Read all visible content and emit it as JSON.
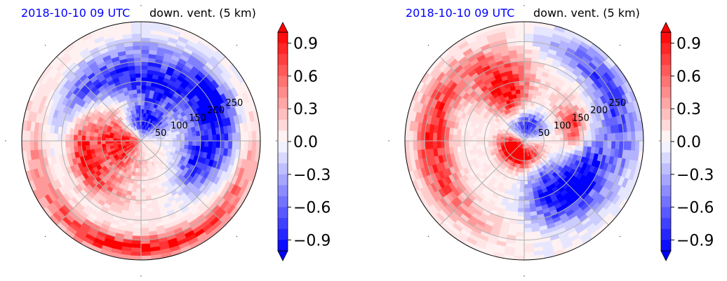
{
  "chart_data": [
    {
      "type": "heatmap",
      "projection": "polar",
      "date_label": "2018-10-10 09 UTC",
      "date_color": "#0000ff",
      "title": "down. vent. (5 km)",
      "radial_tick_labels": [
        "50",
        "100",
        "150",
        "200",
        "250"
      ],
      "radial_ticks": [
        50,
        100,
        150,
        200,
        250
      ],
      "r_max": 300,
      "grid": true,
      "colorbar": {
        "cmap": "bwr",
        "vmin": -1.0,
        "vmax": 1.0,
        "levels": 21,
        "extend": "both",
        "tick_values": [
          0.9,
          0.6,
          0.3,
          0.0,
          -0.3,
          -0.6,
          -0.9
        ],
        "tick_labels": [
          "0.9",
          "0.6",
          "0.3",
          "0.0",
          "−0.3",
          "−0.6",
          "−0.9"
        ],
        "placement": "right"
      },
      "field_features": [
        {
          "azimuth_deg": 180,
          "radius": 55,
          "value": 1.0,
          "spread_r": 45,
          "spread_theta": 50
        },
        {
          "azimuth_deg": 195,
          "radius": 150,
          "value": 0.85,
          "spread_r": 25,
          "spread_theta": 35
        },
        {
          "azimuth_deg": 270,
          "radius": 270,
          "value": 0.9,
          "spread_r": 20,
          "spread_theta": 60
        },
        {
          "azimuth_deg": 70,
          "radius": 140,
          "value": -0.8,
          "spread_r": 70,
          "spread_theta": 30
        },
        {
          "azimuth_deg": 20,
          "radius": 200,
          "value": -0.9,
          "spread_r": 40,
          "spread_theta": 25
        },
        {
          "azimuth_deg": 340,
          "radius": 150,
          "value": -0.8,
          "spread_r": 35,
          "spread_theta": 20
        },
        {
          "azimuth_deg": 95,
          "radius": 50,
          "value": -0.9,
          "spread_r": 25,
          "spread_theta": 40
        },
        {
          "azimuth_deg": 130,
          "radius": 180,
          "value": -0.7,
          "spread_r": 40,
          "spread_theta": 30
        }
      ]
    },
    {
      "type": "heatmap",
      "projection": "polar",
      "date_label": "2018-10-10 09 UTC",
      "date_color": "#0000ff",
      "title": "down. vent. (5 km)",
      "radial_tick_labels": [
        "50",
        "100",
        "150",
        "200",
        "250"
      ],
      "radial_ticks": [
        50,
        100,
        150,
        200,
        250
      ],
      "r_max": 300,
      "grid": true,
      "colorbar": {
        "cmap": "bwr",
        "vmin": -1.0,
        "vmax": 1.0,
        "levels": 21,
        "extend": "both",
        "tick_values": [
          0.9,
          0.6,
          0.3,
          0.0,
          -0.3,
          -0.6,
          -0.9
        ],
        "tick_labels": [
          "0.9",
          "0.6",
          "0.3",
          "0.0",
          "−0.3",
          "−0.6",
          "−0.9"
        ],
        "placement": "right"
      },
      "field_features": [
        {
          "azimuth_deg": 200,
          "radius": 35,
          "value": 1.0,
          "spread_r": 25,
          "spread_theta": 40
        },
        {
          "azimuth_deg": 270,
          "radius": 40,
          "value": 1.0,
          "spread_r": 20,
          "spread_theta": 50
        },
        {
          "azimuth_deg": 110,
          "radius": 140,
          "value": 0.95,
          "spread_r": 60,
          "spread_theta": 18
        },
        {
          "azimuth_deg": 180,
          "radius": 230,
          "value": 0.85,
          "spread_r": 30,
          "spread_theta": 40
        },
        {
          "azimuth_deg": 15,
          "radius": 130,
          "value": 0.8,
          "spread_r": 25,
          "spread_theta": 20
        },
        {
          "azimuth_deg": 90,
          "radius": 40,
          "value": -0.9,
          "spread_r": 25,
          "spread_theta": 50
        },
        {
          "azimuth_deg": 335,
          "radius": 170,
          "value": -0.85,
          "spread_r": 40,
          "spread_theta": 25
        },
        {
          "azimuth_deg": 300,
          "radius": 150,
          "value": -0.8,
          "spread_r": 60,
          "spread_theta": 20
        },
        {
          "azimuth_deg": 30,
          "radius": 250,
          "value": -0.75,
          "spread_r": 30,
          "spread_theta": 35
        }
      ]
    }
  ]
}
